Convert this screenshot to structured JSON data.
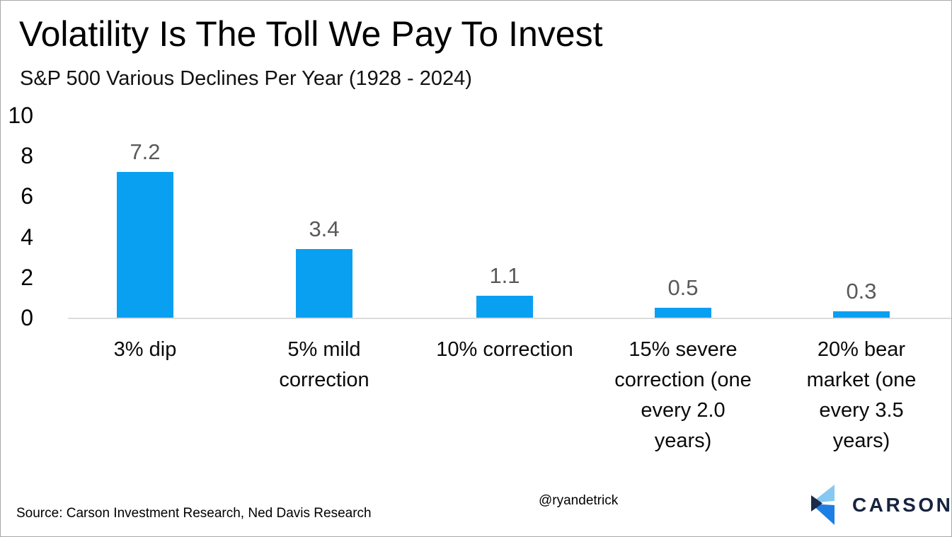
{
  "chart_data": {
    "type": "bar",
    "title": "Volatility Is The Toll We Pay To Invest",
    "subtitle": "S&P 500 Various Declines Per Year (1928 - 2024)",
    "categories": [
      "3% dip",
      "5% mild correction",
      "10% correction",
      "15% severe correction (one every 2.0 years)",
      "20% bear market (one every 3.5 years)"
    ],
    "category_lines": [
      [
        "3% dip"
      ],
      [
        "5% mild",
        "correction"
      ],
      [
        "10% correction"
      ],
      [
        "15% severe",
        "correction (one",
        "every 2.0",
        "years)"
      ],
      [
        "20% bear",
        "market (one",
        "every 3.5",
        "years)"
      ]
    ],
    "values": [
      7.2,
      3.4,
      1.1,
      0.5,
      0.3
    ],
    "value_labels": [
      "7.2",
      "3.4",
      "1.1",
      "0.5",
      "0.3"
    ],
    "y_ticks": [
      0,
      2,
      4,
      6,
      8,
      10
    ],
    "ylim": [
      0,
      10
    ],
    "xlabel": "",
    "ylabel": "",
    "grid": false,
    "legend": "none",
    "bar_color": "#0aa0f2",
    "value_label_color": "#595959",
    "axis_line_color": "#dcdcdc"
  },
  "footer": {
    "source": "Source: Carson Investment Research, Ned Davis Research",
    "handle": "@ryandetrick",
    "logo_text": "CARSON",
    "logo_colors": {
      "light_blue": "#85c8f2",
      "mid_blue": "#1d7fe3",
      "navy": "#1c2b4a",
      "text_navy": "#16243e"
    }
  }
}
